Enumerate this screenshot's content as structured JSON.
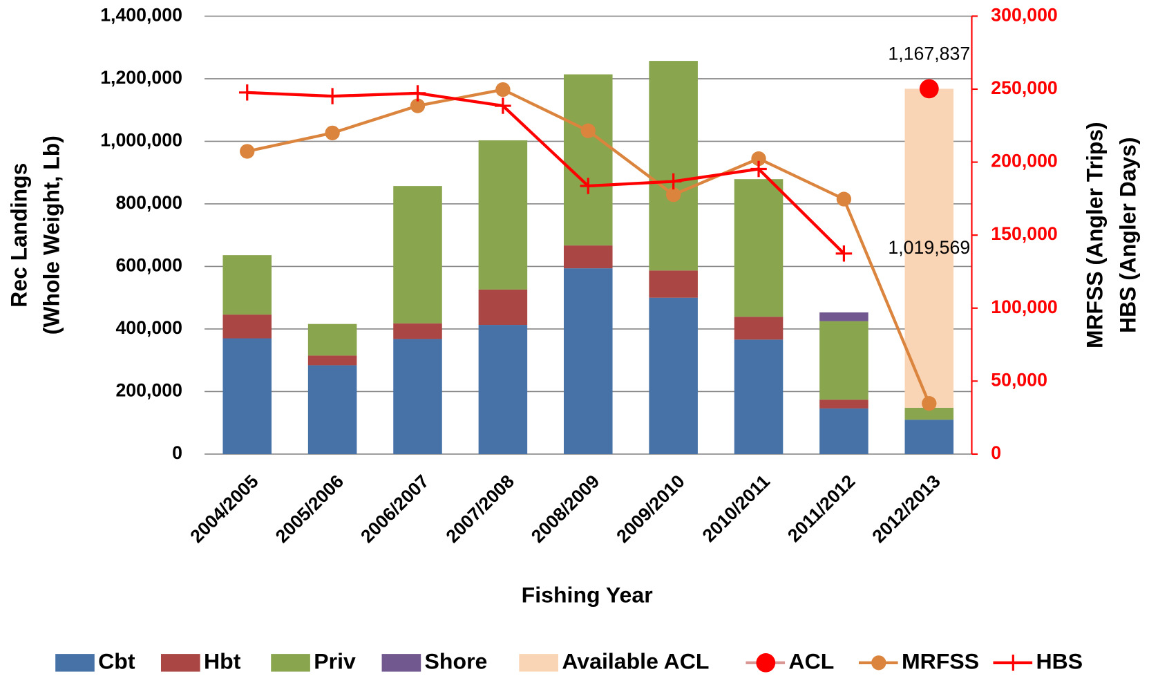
{
  "chart_data": {
    "type": "bar",
    "categories": [
      "2004/2005",
      "2005/2006",
      "2006/2007",
      "2007/2008",
      "2008/2009",
      "2009/2010",
      "2010/2011",
      "2011/2012",
      "2012/2013"
    ],
    "xlabel": "Fishing  Year",
    "ylabel": [
      "Rec Landings",
      "(Whole Weight, Lb)"
    ],
    "y2label": [
      "MRFSS (Angler Trips)",
      "HBS (Angler Days)"
    ],
    "ylim": [
      0,
      1400000
    ],
    "yticks": [
      0,
      {
        "value": 200000,
        "label": "200,000"
      },
      {
        "value": 400000,
        "label": "400,000"
      },
      {
        "value": 600000,
        "label": "600,000"
      },
      {
        "value": 800000,
        "label": "800,000"
      },
      {
        "value": 1000000,
        "label": "1,000,000"
      },
      {
        "value": 1200000,
        "label": "1,200,000"
      },
      {
        "value": 1400000,
        "label": "1,400,000"
      }
    ],
    "y2lim": [
      0,
      300000
    ],
    "y2ticks": [
      0,
      {
        "value": 50000,
        "label": "50,000"
      },
      {
        "value": 100000,
        "label": "100,000"
      },
      {
        "value": 150000,
        "label": "150,000"
      },
      {
        "value": 200000,
        "label": "200,000"
      },
      {
        "value": 250000,
        "label": "250,000"
      },
      {
        "value": 300000,
        "label": "300,000"
      }
    ],
    "grid": true,
    "legend": "bottom",
    "series": [
      {
        "name": "Cbt",
        "type": "bar",
        "color": "#4672a8",
        "values": [
          370000,
          284000,
          368000,
          413000,
          594000,
          500000,
          366000,
          146000,
          110000
        ]
      },
      {
        "name": "Hbt",
        "type": "bar",
        "color": "#aa4643",
        "values": [
          76000,
          31000,
          50000,
          113000,
          73000,
          87000,
          73000,
          28000,
          null
        ]
      },
      {
        "name": "Priv",
        "type": "bar",
        "color": "#89a54e",
        "values": [
          190000,
          101000,
          439000,
          477000,
          547000,
          670000,
          440000,
          251000,
          38268
        ]
      },
      {
        "name": "Shore",
        "type": "bar",
        "color": "#71588f",
        "values": [
          null,
          null,
          null,
          null,
          null,
          null,
          null,
          28000,
          null
        ]
      },
      {
        "name": "Available ACL",
        "type": "bar",
        "color": "#fad5b5",
        "values": [
          null,
          null,
          null,
          null,
          null,
          null,
          null,
          null,
          1019569
        ],
        "value_labels": [
          null,
          null,
          null,
          null,
          null,
          null,
          null,
          null,
          "1,019,569"
        ]
      },
      {
        "name": "ACL",
        "type": "line",
        "marker": "circle",
        "color": "#ff0000",
        "values": [
          null,
          null,
          null,
          null,
          null,
          null,
          null,
          null,
          1167837
        ],
        "value_labels": [
          null,
          null,
          null,
          null,
          null,
          null,
          null,
          null,
          "1,167,837"
        ]
      },
      {
        "name": "MRFSS",
        "type": "line",
        "marker": "circle",
        "color": "#db843d",
        "axis": "y2",
        "values": [
          207400,
          220000,
          238600,
          249700,
          221500,
          177700,
          202400,
          174700,
          34700
        ]
      },
      {
        "name": "HBS",
        "type": "line",
        "marker": "plus",
        "color": "#ff0000",
        "axis": "y2",
        "values": [
          247700,
          245200,
          247200,
          238600,
          183700,
          186800,
          195300,
          137400,
          null
        ]
      }
    ]
  }
}
